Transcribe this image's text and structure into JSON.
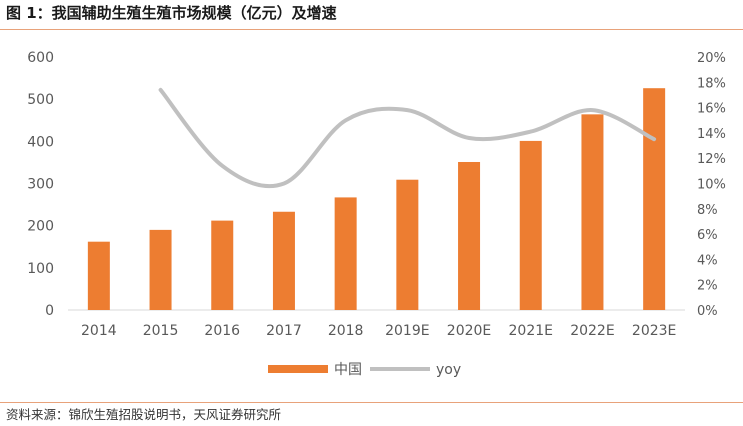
{
  "figure": {
    "title": "图 1：我国辅助生殖生殖市场规模（亿元）及增速",
    "source": "资料来源：锦欣生殖招股说明书，天风证券研究所"
  },
  "colors": {
    "bar": "#ed7d31",
    "line": "#c0c0c0",
    "rule": "#e8a27a",
    "axis": "#d9d9d9",
    "text": "#595959"
  },
  "chart_data": {
    "type": "bar",
    "title": "我国辅助生殖生殖市场规模（亿元）及增速",
    "categories": [
      "2014",
      "2015",
      "2016",
      "2017",
      "2018",
      "2019E",
      "2020E",
      "2021E",
      "2022E",
      "2023E"
    ],
    "series": [
      {
        "name": "中国",
        "type": "bar",
        "axis": "left",
        "values": [
          162,
          190,
          212,
          233,
          267,
          309,
          351,
          401,
          464,
          526
        ]
      },
      {
        "name": "yoy",
        "type": "line",
        "axis": "right",
        "values": [
          null,
          17.4,
          11.4,
          10.0,
          15.0,
          15.8,
          13.6,
          14.1,
          15.8,
          13.5
        ]
      }
    ],
    "yleft": {
      "min": 0,
      "max": 600,
      "ticks": [
        "0",
        "100",
        "200",
        "300",
        "400",
        "500",
        "600"
      ]
    },
    "yright": {
      "min": 0,
      "max": 20,
      "ticks": [
        "0%",
        "2%",
        "4%",
        "6%",
        "8%",
        "10%",
        "12%",
        "14%",
        "16%",
        "18%",
        "20%"
      ]
    },
    "legend": {
      "position": "bottom",
      "labels": [
        "中国",
        "yoy"
      ]
    },
    "grid": false
  }
}
